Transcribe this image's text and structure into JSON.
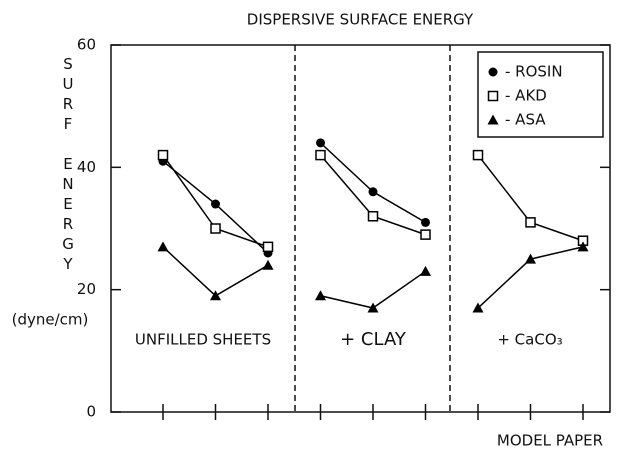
{
  "chart_data": {
    "type": "line",
    "title": "DISPERSIVE SURFACE ENERGY",
    "y_label_lines": [
      "SURF",
      "ENERGY"
    ],
    "y_unit": "(dyne/cm)",
    "x_label": "MODEL PAPER",
    "groups": [
      "UNFILLED SHEETS",
      "+ CLAY",
      "+ CaCO₃"
    ],
    "categories": [
      null,
      null,
      null,
      null,
      null,
      null,
      null,
      null,
      null
    ],
    "series": [
      {
        "name": "- ROSIN",
        "marker": "circle",
        "color": "#000000",
        "values": [
          41,
          34,
          26,
          44,
          36,
          31,
          null,
          null,
          null
        ]
      },
      {
        "name": "- AKD",
        "marker": "square",
        "color": "#000000",
        "values": [
          42,
          30,
          27,
          42,
          32,
          29,
          42,
          31,
          28
        ]
      },
      {
        "name": "- ASA",
        "marker": "triangle",
        "color": "#000000",
        "values": [
          27,
          19,
          24,
          19,
          17,
          23,
          17,
          25,
          27
        ]
      }
    ],
    "ylim": [
      0,
      60
    ],
    "yticks": [
      0,
      20,
      40,
      60
    ]
  }
}
